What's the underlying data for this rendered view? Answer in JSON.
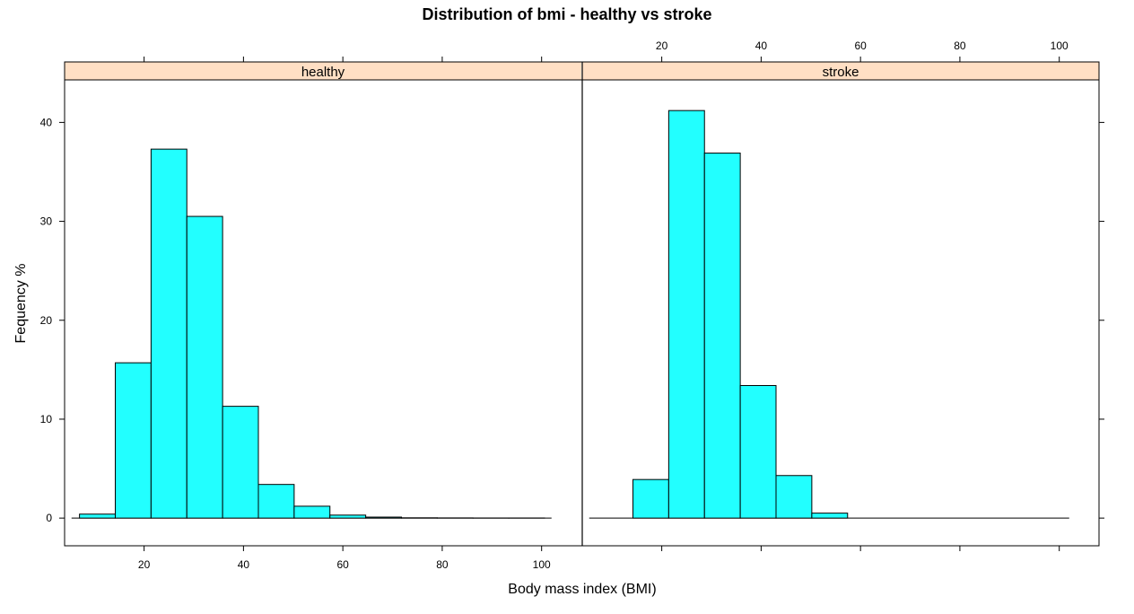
{
  "chart_data": {
    "type": "bar",
    "subtype": "histogram-trellis",
    "title": "Distribution of bmi - healthy vs stroke",
    "xlabel": "Body mass index (BMI)",
    "ylabel": "Fequency %",
    "xlim": [
      4,
      108
    ],
    "ylim": [
      -2.8,
      44.3
    ],
    "xticks": [
      20,
      40,
      60,
      80,
      100
    ],
    "yticks": [
      0,
      10,
      20,
      30,
      40
    ],
    "grid": false,
    "legend": "none",
    "colors": {
      "bar_fill": "#22ffff",
      "bar_stroke": "#000000",
      "strip_fill": "#ffdfc4",
      "frame": "#000000"
    },
    "panels": [
      {
        "label": "healthy",
        "bins": [
          {
            "x0": 7.0,
            "x1": 14.2,
            "value": 0.4
          },
          {
            "x0": 14.2,
            "x1": 21.4,
            "value": 15.7
          },
          {
            "x0": 21.4,
            "x1": 28.6,
            "value": 37.3
          },
          {
            "x0": 28.6,
            "x1": 35.8,
            "value": 30.5
          },
          {
            "x0": 35.8,
            "x1": 43.0,
            "value": 11.3
          },
          {
            "x0": 43.0,
            "x1": 50.2,
            "value": 3.4
          },
          {
            "x0": 50.2,
            "x1": 57.4,
            "value": 1.2
          },
          {
            "x0": 57.4,
            "x1": 64.6,
            "value": 0.3
          },
          {
            "x0": 64.6,
            "x1": 71.8,
            "value": 0.1
          },
          {
            "x0": 71.8,
            "x1": 79.0,
            "value": 0.03
          },
          {
            "x0": 79.0,
            "x1": 86.2,
            "value": 0.02
          },
          {
            "x0": 86.2,
            "x1": 93.4,
            "value": 0.01
          },
          {
            "x0": 93.4,
            "x1": 100.6,
            "value": 0.01
          }
        ],
        "baseline_x": [
          5.4,
          102
        ]
      },
      {
        "label": "stroke",
        "bins": [
          {
            "x0": 14.2,
            "x1": 21.4,
            "value": 3.9
          },
          {
            "x0": 21.4,
            "x1": 28.6,
            "value": 41.2
          },
          {
            "x0": 28.6,
            "x1": 35.8,
            "value": 36.9
          },
          {
            "x0": 35.8,
            "x1": 43.0,
            "value": 13.4
          },
          {
            "x0": 43.0,
            "x1": 50.2,
            "value": 4.3
          },
          {
            "x0": 50.2,
            "x1": 57.4,
            "value": 0.5
          }
        ],
        "baseline_x": [
          5.4,
          102
        ]
      }
    ]
  }
}
